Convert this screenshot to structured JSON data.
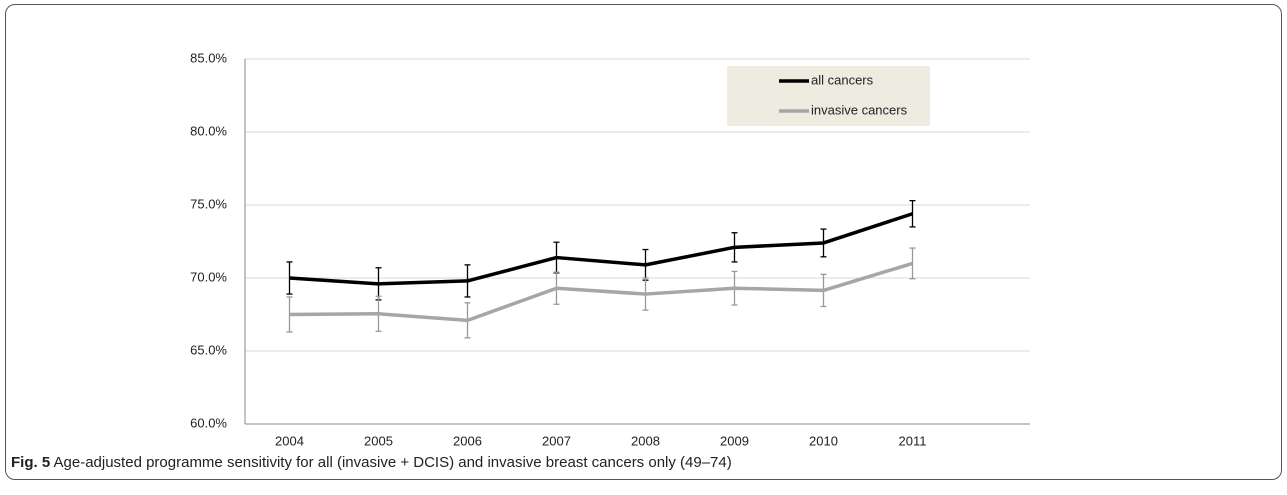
{
  "chart_data": {
    "type": "line",
    "categories": [
      "2004",
      "2005",
      "2006",
      "2007",
      "2008",
      "2009",
      "2010",
      "2011"
    ],
    "series": [
      {
        "name": "all cancers",
        "color": "#000000",
        "values": [
          70.0,
          69.6,
          69.8,
          71.4,
          70.9,
          72.1,
          72.4,
          74.4
        ],
        "error": [
          1.1,
          1.1,
          1.1,
          1.05,
          1.05,
          1.0,
          0.95,
          0.9
        ]
      },
      {
        "name": "invasive cancers",
        "color": "#a6a6a6",
        "values": [
          67.5,
          67.55,
          67.1,
          69.3,
          68.9,
          69.3,
          69.15,
          71.0
        ],
        "error": [
          1.2,
          1.2,
          1.2,
          1.1,
          1.1,
          1.15,
          1.1,
          1.05
        ]
      }
    ],
    "ylim": [
      60,
      85
    ],
    "yticks": [
      {
        "value": 60,
        "label": "60.0%"
      },
      {
        "value": 65,
        "label": "65.0%"
      },
      {
        "value": 70,
        "label": "70.0%"
      },
      {
        "value": 75,
        "label": "75.0%"
      },
      {
        "value": 80,
        "label": "80.0%"
      },
      {
        "value": 85,
        "label": "85.0%"
      }
    ],
    "grid": true,
    "legend": "top-right"
  },
  "caption": {
    "label": "Fig. 5",
    "text": "Age-adjusted programme sensitivity for all (invasive + DCIS) and invasive breast cancers only (49–74)"
  }
}
